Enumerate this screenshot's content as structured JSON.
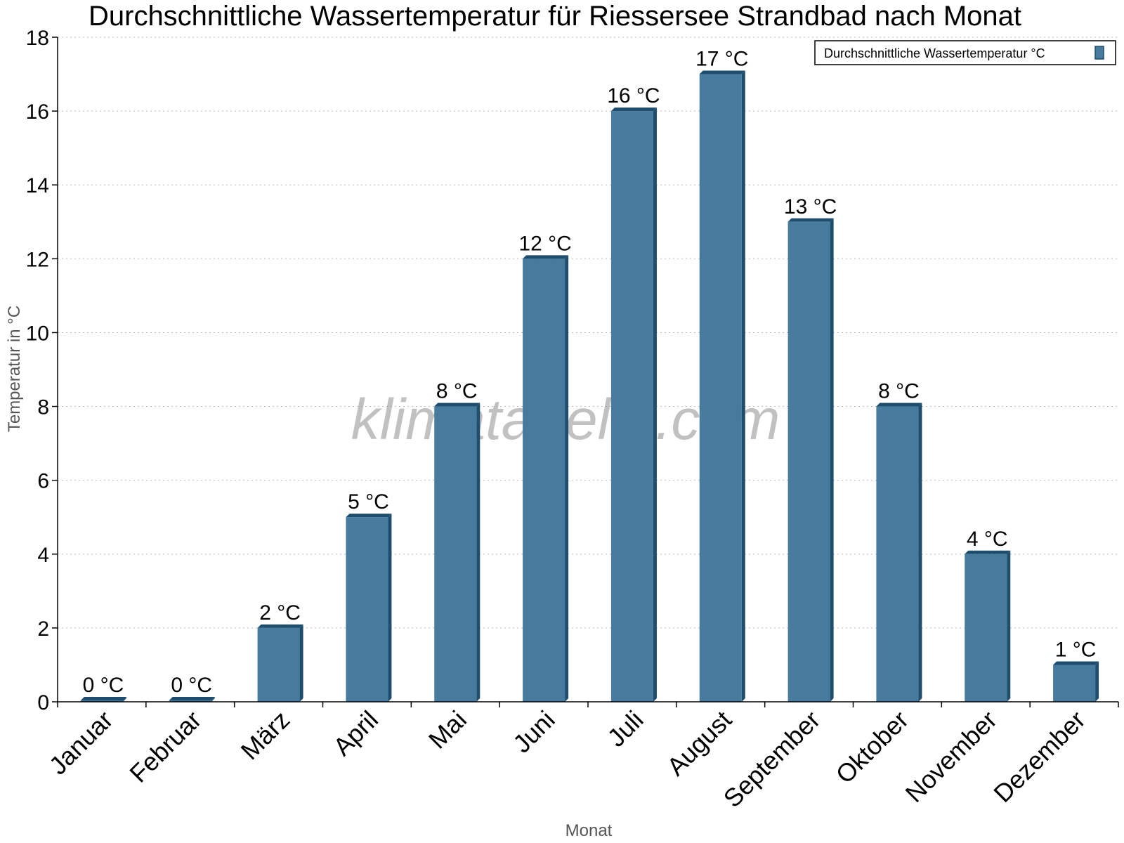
{
  "chart_data": {
    "type": "bar",
    "title": "Durchschnittliche Wassertemperatur für Riessersee Strandbad nach Monat",
    "xlabel": "Monat",
    "ylabel": "Temperatur in °C",
    "categories": [
      "Januar",
      "Februar",
      "März",
      "April",
      "Mai",
      "Juni",
      "Juli",
      "August",
      "September",
      "Oktober",
      "November",
      "Dezember"
    ],
    "series": [
      {
        "name": "Durchschnittliche Wassertemperatur °C",
        "values": [
          0,
          0,
          2,
          5,
          8,
          12,
          16,
          17,
          13,
          8,
          4,
          1
        ],
        "labels": [
          "0 °C",
          "0 °C",
          "2 °C",
          "5 °C",
          "8 °C",
          "12 °C",
          "16 °C",
          "17 °C",
          "13 °C",
          "8 °C",
          "4 °C",
          "1 °C"
        ]
      }
    ],
    "ylim": [
      0,
      18
    ],
    "yticks": [
      "0",
      "2",
      "4",
      "6",
      "8",
      "10",
      "12",
      "14",
      "16",
      "18"
    ],
    "grid": true,
    "legend_position": "top-right",
    "bar_color": "#467b9d",
    "bar_side_color": "#1e4d6e",
    "watermark": "klimatabelle.com"
  }
}
